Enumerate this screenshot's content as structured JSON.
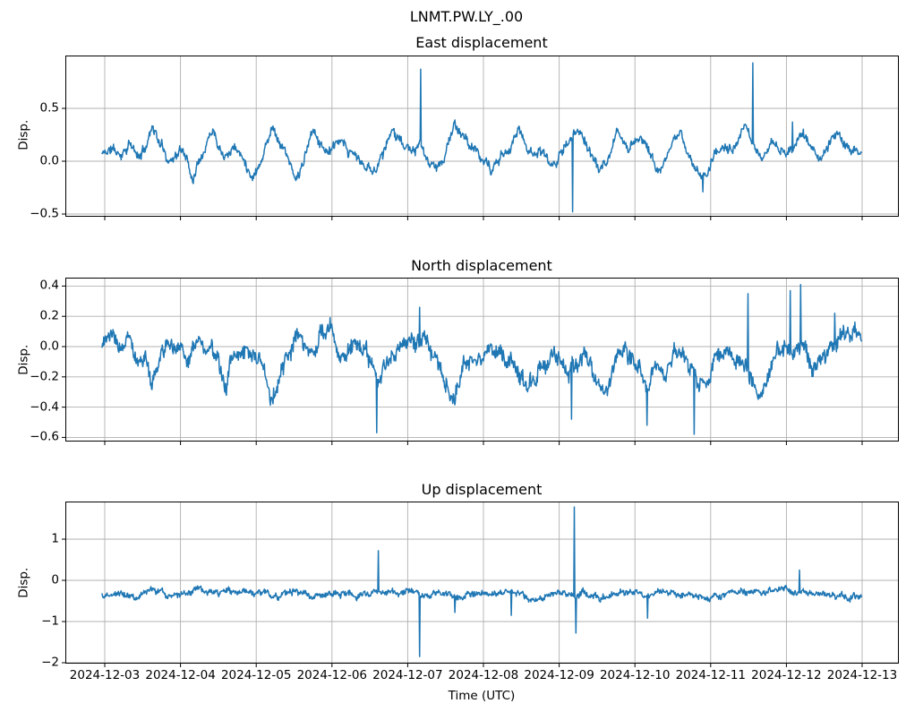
{
  "figure": {
    "suptitle": "LNMT.PW.LY_.00",
    "background_color": "#ffffff",
    "line_color": "#1f77b4",
    "grid_color": "#b0b0b0",
    "text_color": "#000000"
  },
  "x_axis": {
    "label": "Time (UTC)",
    "tick_days": [
      0,
      1,
      2,
      3,
      4,
      5,
      6,
      7,
      8,
      9,
      10
    ],
    "tick_labels": [
      "2024-12-03",
      "2024-12-04",
      "2024-12-05",
      "2024-12-06",
      "2024-12-07",
      "2024-12-08",
      "2024-12-09",
      "2024-12-10",
      "2024-12-11",
      "2024-12-12",
      "2024-12-13"
    ],
    "x_range_days": [
      -0.52,
      10.5
    ]
  },
  "chart_data": [
    {
      "type": "line",
      "title": "East displacement",
      "ylabel": "Disp.",
      "legend": null,
      "grid": true,
      "x_unit": "days since 2024-12-03 00:00 UTC",
      "x_data_range": [
        -0.035,
        9.99
      ],
      "ylim": [
        -0.525,
        1.0
      ],
      "yticks": [
        0.5,
        0.0,
        -0.5
      ],
      "ytick_labels": [
        "0.5",
        "0.0",
        "−0.5"
      ],
      "noise_amp": 0.04,
      "anchors": [
        [
          -0.03,
          0.07
        ],
        [
          0.1,
          0.12
        ],
        [
          0.2,
          0.05
        ],
        [
          0.32,
          0.18
        ],
        [
          0.45,
          0.02
        ],
        [
          0.55,
          0.15
        ],
        [
          0.63,
          0.36
        ],
        [
          0.72,
          0.18
        ],
        [
          0.85,
          0.02
        ],
        [
          1.0,
          0.1
        ],
        [
          1.08,
          0.05
        ],
        [
          1.16,
          -0.17
        ],
        [
          1.25,
          0.05
        ],
        [
          1.35,
          0.2
        ],
        [
          1.43,
          0.33
        ],
        [
          1.52,
          0.15
        ],
        [
          1.6,
          0.1
        ],
        [
          1.72,
          0.15
        ],
        [
          1.85,
          0.0
        ],
        [
          1.95,
          -0.13
        ],
        [
          2.05,
          0.0
        ],
        [
          2.15,
          0.2
        ],
        [
          2.22,
          0.35
        ],
        [
          2.3,
          0.2
        ],
        [
          2.4,
          0.08
        ],
        [
          2.52,
          -0.2
        ],
        [
          2.62,
          -0.02
        ],
        [
          2.76,
          0.3
        ],
        [
          2.88,
          0.12
        ],
        [
          3.0,
          0.1
        ],
        [
          3.1,
          0.17
        ],
        [
          3.2,
          0.08
        ],
        [
          3.3,
          0.05
        ],
        [
          3.42,
          -0.05
        ],
        [
          3.55,
          -0.1
        ],
        [
          3.68,
          0.1
        ],
        [
          3.82,
          0.32
        ],
        [
          3.92,
          0.18
        ],
        [
          4.05,
          0.08
        ],
        [
          4.17,
          0.12
        ],
        [
          4.28,
          -0.02
        ],
        [
          4.38,
          -0.1
        ],
        [
          4.5,
          0.08
        ],
        [
          4.62,
          0.35
        ],
        [
          4.75,
          0.2
        ],
        [
          4.88,
          0.1
        ],
        [
          5.0,
          0.02
        ],
        [
          5.1,
          -0.1
        ],
        [
          5.2,
          0.0
        ],
        [
          5.35,
          0.15
        ],
        [
          5.47,
          0.3
        ],
        [
          5.58,
          0.12
        ],
        [
          5.7,
          0.1
        ],
        [
          5.82,
          0.05
        ],
        [
          5.95,
          -0.05
        ],
        [
          6.05,
          0.12
        ],
        [
          6.18,
          0.22
        ],
        [
          6.28,
          0.3
        ],
        [
          6.4,
          0.1
        ],
        [
          6.52,
          -0.08
        ],
        [
          6.62,
          -0.05
        ],
        [
          6.77,
          0.28
        ],
        [
          6.88,
          0.12
        ],
        [
          7.0,
          0.2
        ],
        [
          7.08,
          0.25
        ],
        [
          7.2,
          0.08
        ],
        [
          7.32,
          -0.1
        ],
        [
          7.45,
          0.05
        ],
        [
          7.6,
          0.28
        ],
        [
          7.72,
          0.05
        ],
        [
          7.85,
          -0.15
        ],
        [
          7.95,
          -0.1
        ],
        [
          8.05,
          0.08
        ],
        [
          8.18,
          0.15
        ],
        [
          8.3,
          0.1
        ],
        [
          8.45,
          0.28
        ],
        [
          8.56,
          0.2
        ],
        [
          8.68,
          0.0
        ],
        [
          8.8,
          0.2
        ],
        [
          8.9,
          0.12
        ],
        [
          9.0,
          0.05
        ],
        [
          9.1,
          0.12
        ],
        [
          9.22,
          0.28
        ],
        [
          9.33,
          0.12
        ],
        [
          9.45,
          0.0
        ],
        [
          9.55,
          0.12
        ],
        [
          9.67,
          0.3
        ],
        [
          9.78,
          0.15
        ],
        [
          9.88,
          0.1
        ],
        [
          9.99,
          0.12
        ]
      ],
      "spikes": [
        [
          4.17,
          0.87
        ],
        [
          6.18,
          -0.48
        ],
        [
          7.9,
          -0.29
        ],
        [
          8.56,
          0.93
        ],
        [
          9.08,
          0.37
        ]
      ]
    },
    {
      "type": "line",
      "title": "North displacement",
      "ylabel": "Disp.",
      "legend": null,
      "grid": true,
      "x_unit": "days since 2024-12-03 00:00 UTC",
      "x_data_range": [
        -0.035,
        9.99
      ],
      "ylim": [
        -0.627,
        0.456
      ],
      "yticks": [
        0.4,
        0.2,
        0.0,
        -0.2,
        -0.4,
        -0.6
      ],
      "ytick_labels": [
        "0.4",
        "0.2",
        "0.0",
        "−0.2",
        "−0.4",
        "−0.6"
      ],
      "noise_amp": 0.05,
      "anchors": [
        [
          -0.03,
          0.05
        ],
        [
          0.1,
          0.03
        ],
        [
          0.2,
          -0.03
        ],
        [
          0.3,
          0.05
        ],
        [
          0.45,
          -0.05
        ],
        [
          0.55,
          -0.1
        ],
        [
          0.62,
          -0.24
        ],
        [
          0.72,
          -0.1
        ],
        [
          0.85,
          0.0
        ],
        [
          1.0,
          0.03
        ],
        [
          1.1,
          -0.05
        ],
        [
          1.25,
          0.05
        ],
        [
          1.4,
          -0.05
        ],
        [
          1.5,
          -0.15
        ],
        [
          1.58,
          -0.25
        ],
        [
          1.7,
          -0.08
        ],
        [
          1.85,
          0.0
        ],
        [
          2.0,
          -0.05
        ],
        [
          2.1,
          -0.12
        ],
        [
          2.2,
          -0.37
        ],
        [
          2.32,
          -0.15
        ],
        [
          2.45,
          -0.03
        ],
        [
          2.6,
          0.06
        ],
        [
          2.7,
          -0.02
        ],
        [
          2.85,
          0.03
        ],
        [
          3.0,
          0.1
        ],
        [
          3.1,
          -0.05
        ],
        [
          3.2,
          -0.02
        ],
        [
          3.3,
          0.05
        ],
        [
          3.45,
          -0.03
        ],
        [
          3.55,
          -0.2
        ],
        [
          3.62,
          -0.3
        ],
        [
          3.72,
          -0.1
        ],
        [
          3.85,
          0.0
        ],
        [
          3.95,
          0.05
        ],
        [
          4.1,
          0.0
        ],
        [
          4.25,
          0.05
        ],
        [
          4.4,
          -0.08
        ],
        [
          4.5,
          -0.2
        ],
        [
          4.6,
          -0.35
        ],
        [
          4.72,
          -0.15
        ],
        [
          4.85,
          -0.05
        ],
        [
          5.0,
          0.0
        ],
        [
          5.15,
          -0.05
        ],
        [
          5.3,
          -0.1
        ],
        [
          5.45,
          -0.15
        ],
        [
          5.6,
          -0.28
        ],
        [
          5.75,
          -0.1
        ],
        [
          5.9,
          -0.02
        ],
        [
          6.0,
          -0.08
        ],
        [
          6.1,
          -0.15
        ],
        [
          6.2,
          -0.1
        ],
        [
          6.35,
          -0.05
        ],
        [
          6.5,
          -0.25
        ],
        [
          6.6,
          -0.32
        ],
        [
          6.72,
          -0.1
        ],
        [
          6.85,
          0.0
        ],
        [
          7.0,
          -0.08
        ],
        [
          7.1,
          -0.18
        ],
        [
          7.2,
          -0.22
        ],
        [
          7.3,
          -0.12
        ],
        [
          7.4,
          -0.2
        ],
        [
          7.5,
          -0.05
        ],
        [
          7.6,
          0.0
        ],
        [
          7.7,
          -0.1
        ],
        [
          7.8,
          -0.22
        ],
        [
          7.9,
          -0.28
        ],
        [
          8.0,
          -0.18
        ],
        [
          8.1,
          -0.05
        ],
        [
          8.2,
          0.02
        ],
        [
          8.3,
          -0.05
        ],
        [
          8.45,
          -0.1
        ],
        [
          8.55,
          -0.25
        ],
        [
          8.65,
          -0.38
        ],
        [
          8.78,
          -0.15
        ],
        [
          8.9,
          -0.02
        ],
        [
          9.0,
          0.02
        ],
        [
          9.1,
          -0.02
        ],
        [
          9.2,
          0.05
        ],
        [
          9.3,
          -0.08
        ],
        [
          9.4,
          -0.15
        ],
        [
          9.5,
          -0.05
        ],
        [
          9.6,
          0.0
        ],
        [
          9.7,
          0.05
        ],
        [
          9.8,
          0.03
        ],
        [
          9.9,
          0.08
        ],
        [
          9.99,
          0.05
        ]
      ],
      "spikes": [
        [
          3.59,
          -0.57
        ],
        [
          4.16,
          0.26
        ],
        [
          6.16,
          -0.48
        ],
        [
          7.16,
          -0.52
        ],
        [
          7.78,
          -0.58
        ],
        [
          8.49,
          0.35
        ],
        [
          9.05,
          0.37
        ],
        [
          9.19,
          0.41
        ],
        [
          9.64,
          0.22
        ]
      ]
    },
    {
      "type": "line",
      "title": "Up displacement",
      "ylabel": "Disp.",
      "xlabel": "Time (UTC)",
      "legend": null,
      "grid": true,
      "x_unit": "days since 2024-12-03 00:00 UTC",
      "x_data_range": [
        -0.035,
        9.99
      ],
      "ylim": [
        -2.02,
        1.913
      ],
      "yticks": [
        1,
        0,
        -1,
        -2
      ],
      "ytick_labels": [
        "1",
        "0",
        "−1",
        "−2"
      ],
      "noise_amp": 0.07,
      "anchors": [
        [
          -0.03,
          -0.38
        ],
        [
          0.2,
          -0.3
        ],
        [
          0.4,
          -0.32
        ],
        [
          0.6,
          -0.25
        ],
        [
          0.8,
          -0.35
        ],
        [
          1.0,
          -0.3
        ],
        [
          1.2,
          -0.28
        ],
        [
          1.4,
          -0.35
        ],
        [
          1.6,
          -0.3
        ],
        [
          1.8,
          -0.32
        ],
        [
          2.0,
          -0.28
        ],
        [
          2.2,
          -0.35
        ],
        [
          2.4,
          -0.3
        ],
        [
          2.6,
          -0.25
        ],
        [
          2.8,
          -0.38
        ],
        [
          3.0,
          -0.32
        ],
        [
          3.2,
          -0.3
        ],
        [
          3.4,
          -0.35
        ],
        [
          3.6,
          -0.3
        ],
        [
          3.8,
          -0.32
        ],
        [
          4.0,
          -0.3
        ],
        [
          4.2,
          -0.35
        ],
        [
          4.4,
          -0.3
        ],
        [
          4.6,
          -0.4
        ],
        [
          4.8,
          -0.35
        ],
        [
          5.0,
          -0.3
        ],
        [
          5.2,
          -0.35
        ],
        [
          5.4,
          -0.3
        ],
        [
          5.6,
          -0.38
        ],
        [
          5.8,
          -0.35
        ],
        [
          6.0,
          -0.3
        ],
        [
          6.2,
          -0.32
        ],
        [
          6.4,
          -0.3
        ],
        [
          6.6,
          -0.35
        ],
        [
          6.8,
          -0.3
        ],
        [
          7.0,
          -0.32
        ],
        [
          7.2,
          -0.35
        ],
        [
          7.4,
          -0.3
        ],
        [
          7.6,
          -0.35
        ],
        [
          7.8,
          -0.3
        ],
        [
          8.0,
          -0.35
        ],
        [
          8.2,
          -0.3
        ],
        [
          8.4,
          -0.32
        ],
        [
          8.6,
          -0.25
        ],
        [
          8.8,
          -0.3
        ],
        [
          9.0,
          -0.28
        ],
        [
          9.2,
          -0.3
        ],
        [
          9.4,
          -0.35
        ],
        [
          9.6,
          -0.32
        ],
        [
          9.8,
          -0.38
        ],
        [
          9.99,
          -0.4
        ]
      ],
      "spikes": [
        [
          3.61,
          0.72
        ],
        [
          4.16,
          -1.85
        ],
        [
          4.62,
          -0.78
        ],
        [
          5.37,
          -0.85
        ],
        [
          6.2,
          1.78
        ],
        [
          6.22,
          -1.28
        ],
        [
          7.17,
          -0.92
        ],
        [
          9.17,
          0.25
        ]
      ]
    }
  ]
}
